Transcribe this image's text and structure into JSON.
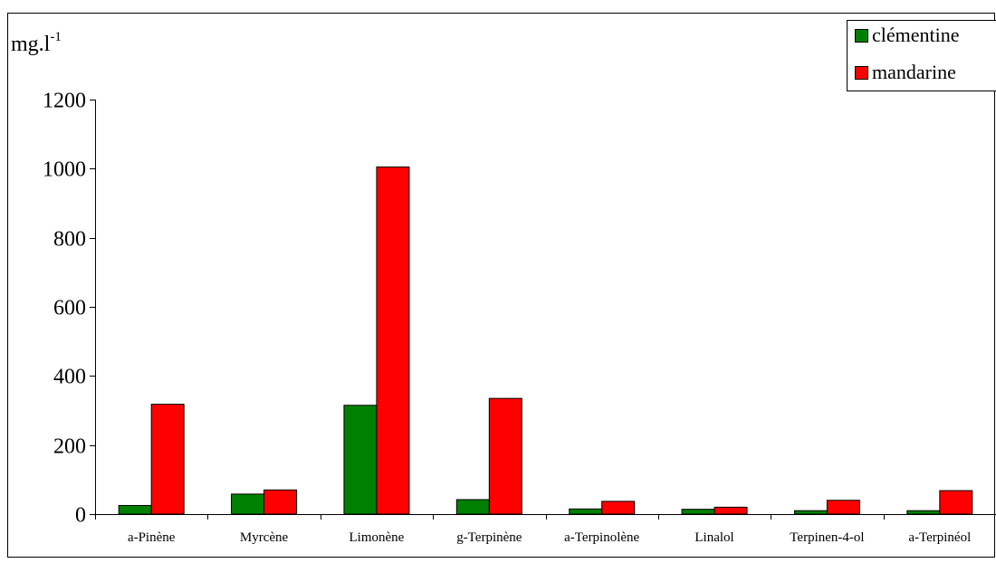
{
  "chart_data": {
    "type": "bar",
    "title": "",
    "xlabel": "",
    "ylabel": "mg.l",
    "ylabel_superscript": "-1",
    "ylim": [
      0,
      1200
    ],
    "yticks": [
      "0",
      "200",
      "400",
      "600",
      "800",
      "1000",
      "1200"
    ],
    "grid": false,
    "legend_position": "top-right",
    "categories": [
      "a-Pinène",
      "Myrcène",
      "Limonène",
      "g-Terpinène",
      "a-Terpinolène",
      "Linalol",
      "Terpinen-4-ol",
      "a-Terpinéol"
    ],
    "series": [
      {
        "name": "clémentine",
        "color": "#008000",
        "values": [
          25,
          58,
          315,
          42,
          15,
          14,
          10,
          10
        ]
      },
      {
        "name": "mandarine",
        "color": "#ff0000",
        "values": [
          318,
          70,
          1005,
          335,
          37,
          20,
          40,
          68
        ]
      }
    ]
  }
}
